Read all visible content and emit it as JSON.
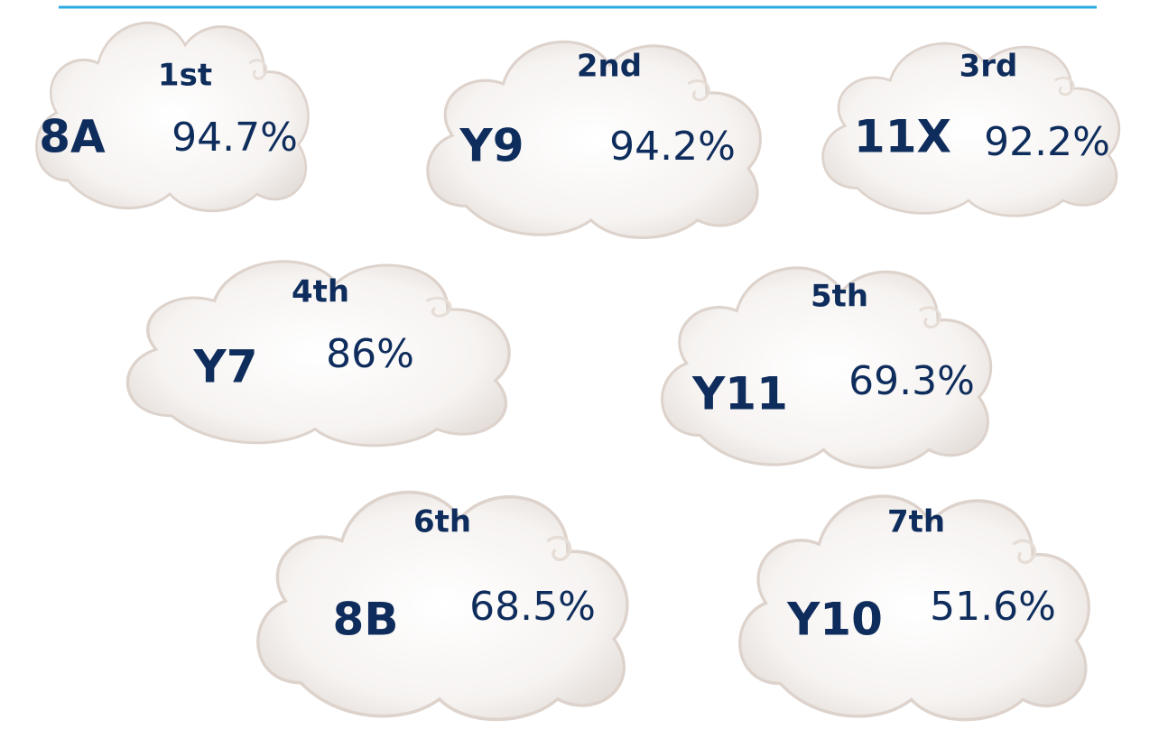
{
  "clouds": [
    {
      "rank": "1st",
      "class": "8A",
      "score": "94.7%"
    },
    {
      "rank": "2nd",
      "class": "Y9",
      "score": "94.2%"
    },
    {
      "rank": "3rd",
      "class": "11X",
      "score": "92.2%"
    },
    {
      "rank": "4th",
      "class": "Y7",
      "score": "86%"
    },
    {
      "rank": "5th",
      "class": "Y11",
      "score": "69.3%"
    },
    {
      "rank": "6th",
      "class": "8B",
      "score": "68.5%"
    },
    {
      "rank": "7th",
      "class": "Y10",
      "score": "51.6%"
    }
  ]
}
